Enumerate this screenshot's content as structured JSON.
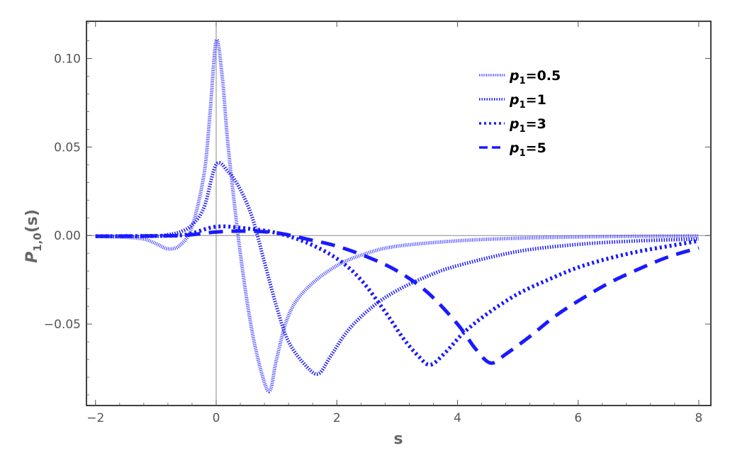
{
  "chart_data": {
    "type": "line",
    "xlabel": "s",
    "ylabel": {
      "main": "P",
      "sub": "1,0",
      "rest": "(s)"
    },
    "xlim": [
      -2.15,
      8.2
    ],
    "ylim": [
      -0.096,
      0.121
    ],
    "x_ticks": [
      -2,
      0,
      2,
      4,
      6,
      8
    ],
    "x_tick_labels": [
      "−2",
      "0",
      "2",
      "4",
      "6",
      "8"
    ],
    "y_ticks": [
      0.1,
      0.05,
      0.0,
      -0.05
    ],
    "y_tick_labels": [
      "0.10",
      "0.05",
      "0.00",
      "−0.05"
    ],
    "grid": false,
    "legend": "top-right",
    "colors": {
      "series": "#1a1aff",
      "series_thin": "#3b3bff",
      "axis": "#555555",
      "frame": "#000000"
    },
    "series": [
      {
        "name": {
          "main": "p",
          "sub": "1",
          "rest": "=0.5"
        },
        "style": "hatched-thin",
        "x": [
          -2,
          -1.5,
          -1.2,
          -1.0,
          -0.8,
          -0.6,
          -0.4,
          -0.2,
          -0.1,
          0.0,
          0.1,
          0.2,
          0.4,
          0.6,
          0.8,
          0.9,
          1.0,
          1.2,
          1.5,
          2.0,
          2.5,
          3.0,
          4.0,
          5.0,
          6.0,
          7.0,
          8.0
        ],
        "y": [
          -0.0005,
          -0.001,
          -0.002,
          -0.0045,
          -0.0075,
          -0.0055,
          0.005,
          0.035,
          0.07,
          0.11,
          0.09,
          0.05,
          -0.01,
          -0.055,
          -0.083,
          -0.087,
          -0.07,
          -0.045,
          -0.03,
          -0.017,
          -0.01,
          -0.006,
          -0.003,
          -0.0015,
          -0.0008,
          -0.0004,
          -0.0002
        ]
      },
      {
        "name": {
          "main": "p",
          "sub": "1",
          "rest": "=1"
        },
        "style": "dotted-dense",
        "x": [
          -2,
          -1.5,
          -1.0,
          -0.8,
          -0.6,
          -0.4,
          -0.2,
          0.0,
          0.2,
          0.4,
          0.6,
          0.8,
          1.0,
          1.2,
          1.5,
          1.7,
          1.9,
          2.2,
          2.6,
          3.0,
          3.5,
          4.0,
          5.0,
          6.0,
          7.0,
          8.0
        ],
        "y": [
          -0.0003,
          -0.0005,
          -0.0004,
          0.0005,
          0.002,
          0.006,
          0.016,
          0.04,
          0.036,
          0.026,
          0.01,
          -0.015,
          -0.04,
          -0.06,
          -0.074,
          -0.078,
          -0.068,
          -0.053,
          -0.04,
          -0.031,
          -0.023,
          -0.017,
          -0.009,
          -0.005,
          -0.003,
          -0.002
        ]
      },
      {
        "name": {
          "main": "p",
          "sub": "1",
          "rest": "=3"
        },
        "style": "dotted",
        "x": [
          -2,
          -1.0,
          -0.5,
          0.0,
          0.5,
          1.0,
          1.5,
          2.0,
          2.4,
          2.8,
          3.1,
          3.35,
          3.55,
          3.8,
          4.1,
          4.5,
          5.0,
          5.5,
          6.0,
          6.5,
          7.0,
          7.5,
          8.0
        ],
        "y": [
          -0.0004,
          -0.0002,
          0.0005,
          0.005,
          0.004,
          0.0015,
          -0.004,
          -0.013,
          -0.025,
          -0.043,
          -0.058,
          -0.068,
          -0.073,
          -0.066,
          -0.055,
          -0.044,
          -0.033,
          -0.025,
          -0.018,
          -0.013,
          -0.009,
          -0.006,
          -0.003
        ]
      },
      {
        "name": {
          "main": "p",
          "sub": "1",
          "rest": "=5"
        },
        "style": "dashed",
        "x": [
          -2,
          -1.0,
          -0.5,
          0.0,
          0.5,
          1.0,
          1.5,
          2.0,
          2.5,
          3.0,
          3.5,
          4.0,
          4.3,
          4.55,
          4.8,
          5.2,
          5.6,
          6.0,
          6.5,
          7.0,
          7.5,
          8.0
        ],
        "y": [
          -0.0004,
          -0.0002,
          0.0002,
          0.002,
          0.0025,
          0.0015,
          -0.002,
          -0.006,
          -0.012,
          -0.02,
          -0.032,
          -0.05,
          -0.064,
          -0.072,
          -0.067,
          -0.057,
          -0.046,
          -0.037,
          -0.027,
          -0.019,
          -0.012,
          -0.007
        ]
      }
    ]
  }
}
